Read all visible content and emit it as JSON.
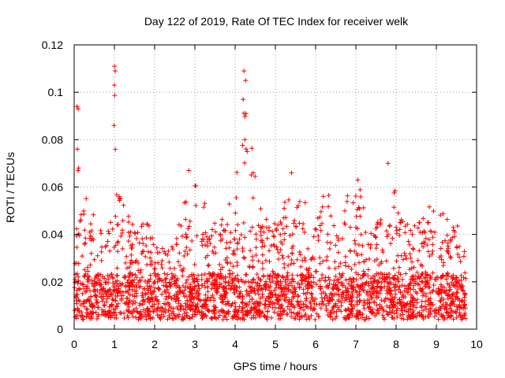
{
  "chart_data": {
    "type": "scatter",
    "title": "Day 122 of 2019, Rate Of TEC Index for receiver welk",
    "xlabel": "GPS time / hours",
    "ylabel": "ROTI / TECUs",
    "xlim": [
      0,
      10
    ],
    "ylim": [
      0,
      0.12
    ],
    "xticks": [
      0,
      1,
      2,
      3,
      4,
      5,
      6,
      7,
      8,
      9,
      10
    ],
    "yticks": [
      0,
      0.02,
      0.04,
      0.06,
      0.08,
      0.1,
      0.12
    ],
    "xtick_labels": [
      "0",
      "1",
      "2",
      "3",
      "4",
      "5",
      "6",
      "7",
      "8",
      "9",
      "10"
    ],
    "ytick_labels": [
      "0",
      "0.02",
      "0.04",
      "0.06",
      "0.08",
      "0.1",
      "0.12"
    ],
    "grid": true,
    "marker": "+",
    "color": "#ff0000",
    "series": [
      {
        "name": "ROTI",
        "x_start": 0.0,
        "x_end": 9.75,
        "baseline_min": 0.004,
        "baseline_max": 0.03,
        "envelope": [
          [
            0.0,
            0.045
          ],
          [
            0.08,
            0.095
          ],
          [
            0.2,
            0.06
          ],
          [
            0.4,
            0.055
          ],
          [
            0.6,
            0.06
          ],
          [
            0.8,
            0.062
          ],
          [
            0.95,
            0.067
          ],
          [
            1.0,
            0.111
          ],
          [
            1.1,
            0.06
          ],
          [
            1.3,
            0.05
          ],
          [
            1.6,
            0.042
          ],
          [
            1.8,
            0.049
          ],
          [
            2.0,
            0.036
          ],
          [
            2.3,
            0.035
          ],
          [
            2.6,
            0.045
          ],
          [
            2.85,
            0.068
          ],
          [
            3.1,
            0.063
          ],
          [
            3.4,
            0.045
          ],
          [
            3.8,
            0.048
          ],
          [
            4.05,
            0.07
          ],
          [
            4.25,
            0.11
          ],
          [
            4.5,
            0.065
          ],
          [
            4.8,
            0.046
          ],
          [
            5.1,
            0.045
          ],
          [
            5.4,
            0.066
          ],
          [
            5.7,
            0.055
          ],
          [
            6.0,
            0.052
          ],
          [
            6.3,
            0.06
          ],
          [
            6.6,
            0.053
          ],
          [
            7.05,
            0.063
          ],
          [
            7.3,
            0.048
          ],
          [
            7.6,
            0.05
          ],
          [
            7.85,
            0.07
          ],
          [
            8.1,
            0.05
          ],
          [
            8.4,
            0.042
          ],
          [
            8.8,
            0.054
          ],
          [
            9.1,
            0.05
          ],
          [
            9.5,
            0.048
          ],
          [
            9.75,
            0.036
          ]
        ],
        "sample_points": [
          [
            0.07,
            0.094
          ],
          [
            0.1,
            0.093
          ],
          [
            0.08,
            0.076
          ],
          [
            1.0,
            0.111
          ],
          [
            1.02,
            0.109
          ],
          [
            1.0,
            0.103
          ],
          [
            0.99,
            0.086
          ],
          [
            4.22,
            0.109
          ],
          [
            4.26,
            0.105
          ],
          [
            4.2,
            0.097
          ],
          [
            4.27,
            0.091
          ],
          [
            4.24,
            0.08
          ],
          [
            4.3,
            0.075
          ],
          [
            7.8,
            0.07
          ],
          [
            5.4,
            0.066
          ],
          [
            2.85,
            0.067
          ],
          [
            7.05,
            0.063
          ],
          [
            0.02,
            0.008
          ],
          [
            9.7,
            0.01
          ]
        ]
      }
    ]
  }
}
